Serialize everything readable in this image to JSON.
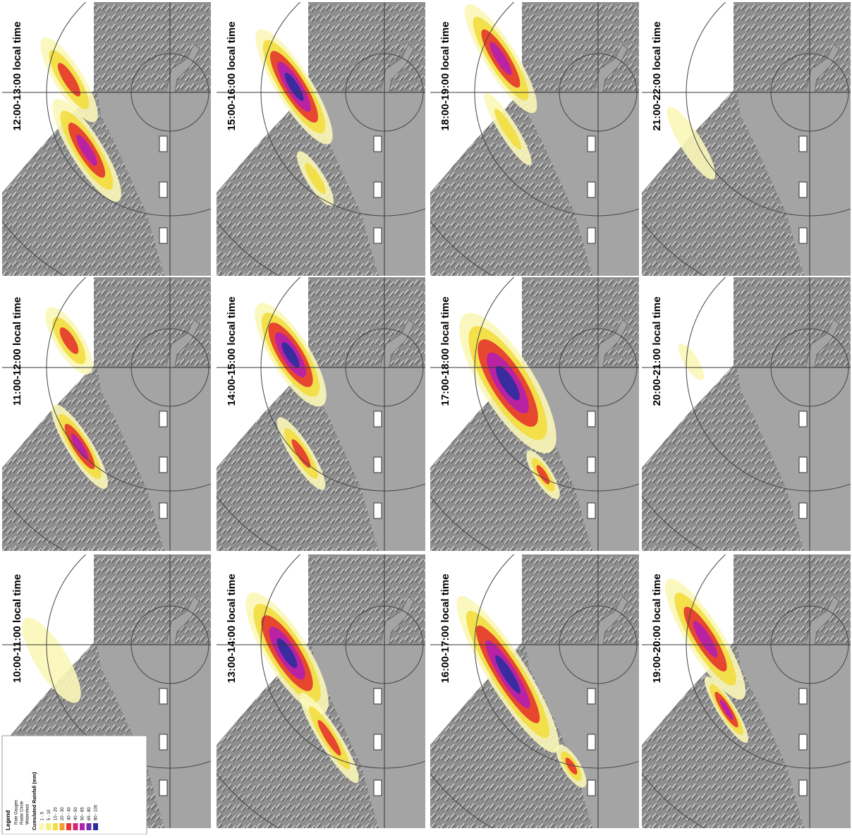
{
  "panels": [
    {
      "label": "12:00-13:00 local time"
    },
    {
      "label": "15:00-16:00 local time"
    },
    {
      "label": "18:00-19:00 local time"
    },
    {
      "label": "21:00-22:00 local time"
    },
    {
      "label": "11:00-12:00 local time"
    },
    {
      "label": "14:00-15:00 local time"
    },
    {
      "label": "17:00-18:00 local time"
    },
    {
      "label": "20:00-21:00 local time"
    },
    {
      "label": "10:00-11:00 local time"
    },
    {
      "label": "13:00-14:00 local time"
    },
    {
      "label": "16:00-17:00 local time"
    },
    {
      "label": "19:00-20:00 local time"
    }
  ],
  "legend": {
    "title": "Legend",
    "items": [
      "Rain Gauges",
      "Radar Circle",
      "Watershed"
    ],
    "scale_title": "Cumulated Rainfall (mm)",
    "classes": [
      {
        "label": "1 - 5",
        "color": "#fbf7b8"
      },
      {
        "label": "5 - 10",
        "color": "#f6ee7c"
      },
      {
        "label": "10 - 20",
        "color": "#f2dd3e"
      },
      {
        "label": "20 - 30",
        "color": "#f49a30"
      },
      {
        "label": "30 - 40",
        "color": "#e6352c"
      },
      {
        "label": "40 - 50",
        "color": "#d22479"
      },
      {
        "label": "50 - 65",
        "color": "#b41fb0"
      },
      {
        "label": "65 - 80",
        "color": "#7030a8"
      },
      {
        "label": "80 - 100",
        "color": "#2b2e9e"
      }
    ]
  }
}
